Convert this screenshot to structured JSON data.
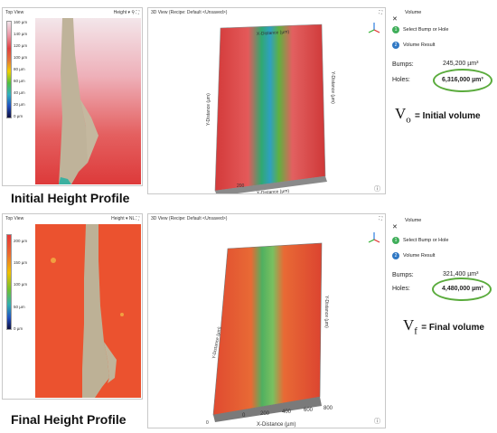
{
  "top": {
    "topview": {
      "title": "Top View",
      "mode": "Height",
      "scale": [
        "160 µm",
        "140 µm",
        "120 µm",
        "100 µm",
        "80 µm",
        "60 µm",
        "40 µm",
        "20 µm",
        "0 µm"
      ]
    },
    "view3d": {
      "title": "3D View (Recipe: Default <Unsaved>)",
      "x_label": "X-Distance (µm)",
      "y_label": "Y-Distance (µm)",
      "axis_tick": "200"
    },
    "panel": {
      "title": "Volume",
      "step1": "Select Bump or Hole",
      "step2": "Volume Result",
      "bumps_label": "Bumps:",
      "bumps_value": "245,200 µm³",
      "holes_label": "Holes:",
      "holes_value": "6,316,000 µm³"
    },
    "equation": {
      "symbol": "V",
      "sub": "o",
      "text": "= Initial volume"
    },
    "caption": "Initial Height Profile"
  },
  "bottom": {
    "topview": {
      "title": "Top View",
      "mode": "Height",
      "mode_extra": "NL",
      "scale": [
        "200 µm",
        "150 µm",
        "100 µm",
        "50 µm",
        "0 µm"
      ]
    },
    "view3d": {
      "title": "3D View (Recipe: Default <Unsaved>)",
      "x_label": "X-Distance (µm)",
      "y_label": "Y-Distance (µm)",
      "x_ticks": [
        "0",
        "200",
        "400",
        "600",
        "800"
      ],
      "extra_tick": "0"
    },
    "panel": {
      "title": "Volume",
      "step1": "Select Bump or Hole",
      "step2": "Volume Result",
      "bumps_label": "Bumps:",
      "bumps_value": "321,400 µm³",
      "holes_label": "Holes:",
      "holes_value": "4,480,000 µm³"
    },
    "equation": {
      "symbol": "V",
      "sub": "f",
      "text": "= Final volume"
    },
    "caption": "Final Height Profile"
  },
  "colors": {
    "accent_green": "#5aab3c",
    "step1": "#3fae5a",
    "step2": "#2f78c4"
  },
  "icons": [
    "search-icon",
    "expand-icon",
    "close-icon",
    "axis-gizmo-icon",
    "info-icon"
  ]
}
